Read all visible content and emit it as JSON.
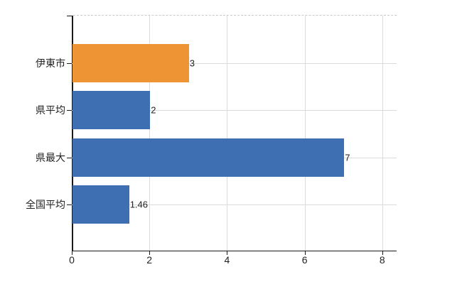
{
  "chart_data": {
    "type": "bar",
    "orientation": "horizontal",
    "categories": [
      "伊東市",
      "県平均",
      "県最大",
      "全国平均"
    ],
    "values": [
      3,
      2,
      7,
      1.46
    ],
    "value_labels": [
      "3",
      "2",
      "7",
      "1.46"
    ],
    "x_tick_values": [
      0,
      2,
      4,
      6,
      8
    ],
    "x_tick_labels": [
      "0",
      "2",
      "4",
      "6",
      "8"
    ],
    "xlim": [
      0,
      8.37
    ],
    "grid": true,
    "legend": false,
    "colors": {
      "bar_colors": [
        "#EF9435",
        "#3E6FB2",
        "#3E6FB2",
        "#3E6FB2"
      ],
      "highlight_bar": "#EF9435",
      "default_bar": "#3E6FB2",
      "gridline": "#DBDBDB",
      "axis": "#1A1A1A",
      "text": "#222222"
    }
  }
}
